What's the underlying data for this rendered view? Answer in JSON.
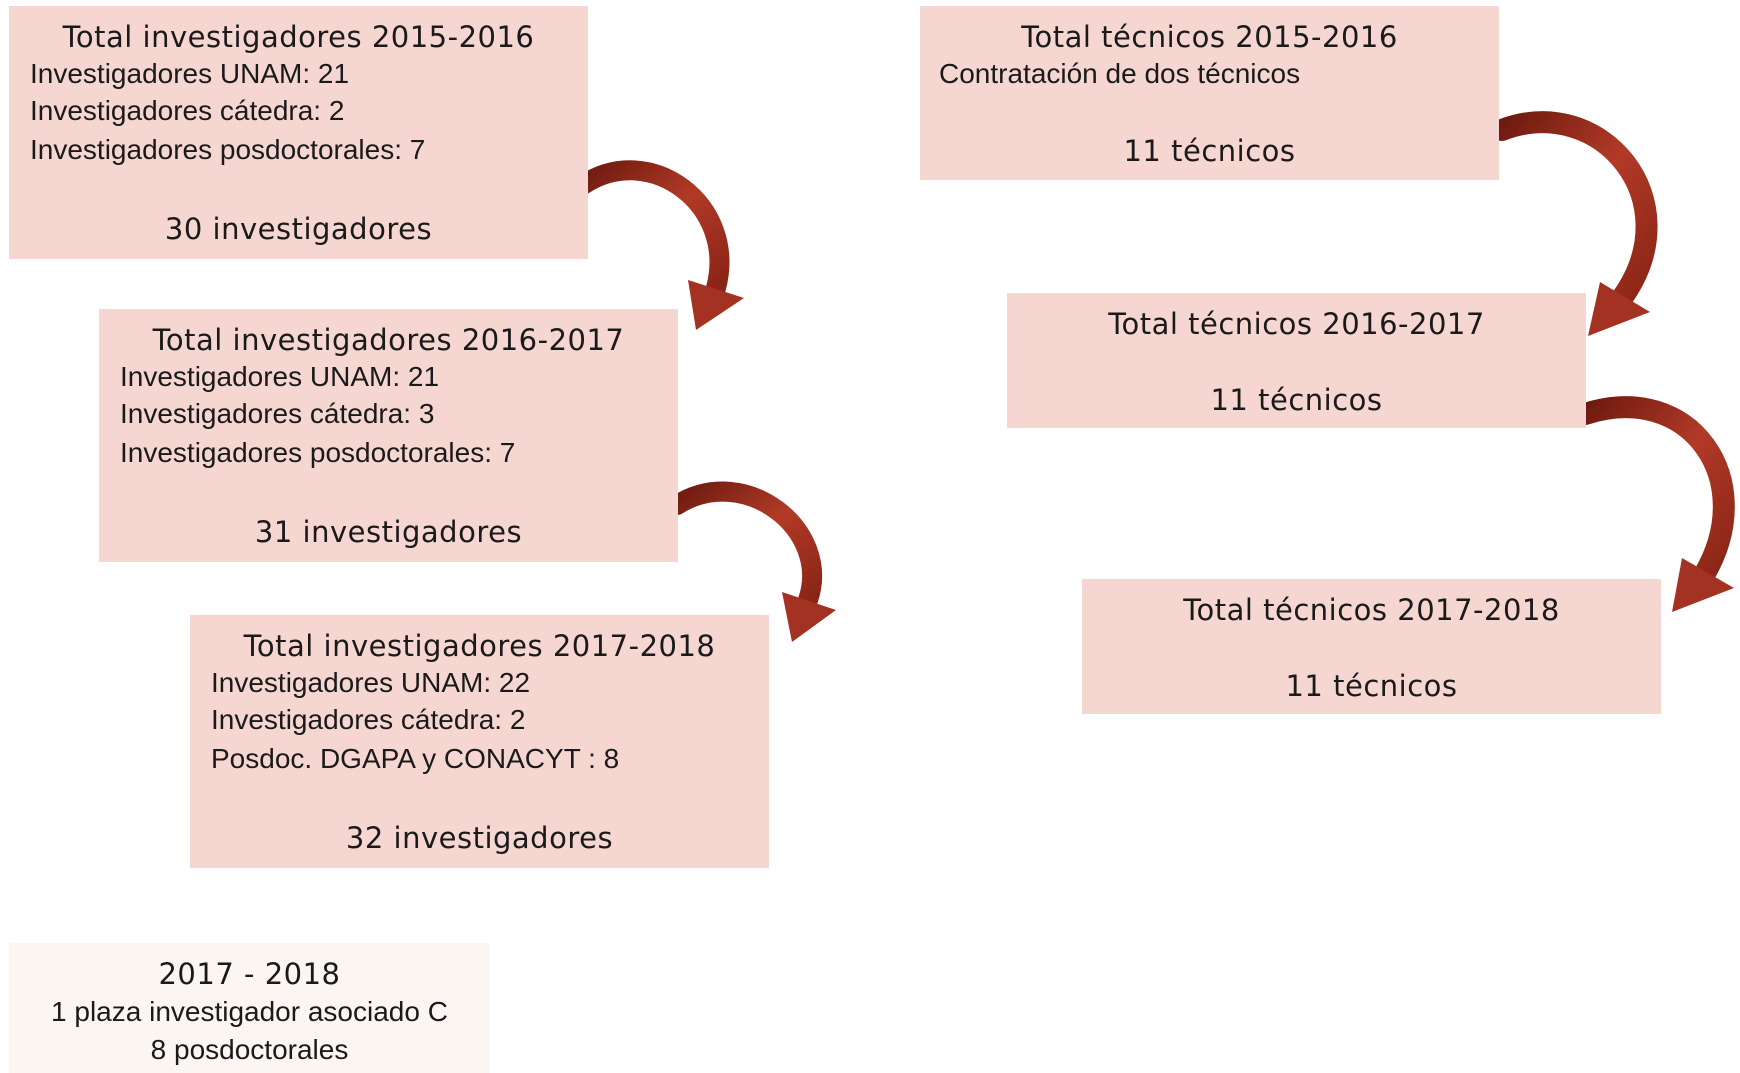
{
  "researchers": [
    {
      "title": "Total investigadores 2015-2016",
      "lines": [
        "Investigadores UNAM: 21",
        "Investigadores cátedra: 2",
        "Investigadores posdoctorales: 7"
      ],
      "total": "30 investigadores"
    },
    {
      "title": "Total investigadores 2016-2017",
      "lines": [
        "Investigadores UNAM: 21",
        "Investigadores cátedra: 3",
        "Investigadores posdoctorales: 7"
      ],
      "total": "31 investigadores"
    },
    {
      "title": "Total investigadores 2017-2018",
      "lines": [
        "Investigadores UNAM: 22",
        "Investigadores cátedra: 2",
        "Posdoc. DGAPA y CONACYT : 8"
      ],
      "total": "32 investigadores"
    }
  ],
  "technicians": [
    {
      "title": "Total técnicos 2015-2016",
      "lines": [
        "Contratación de dos técnicos"
      ],
      "total": "11 técnicos"
    },
    {
      "title": "Total técnicos 2016-2017",
      "total": "11 técnicos"
    },
    {
      "title": "Total técnicos 2017-2018",
      "total": "11 técnicos"
    }
  ],
  "note": {
    "title": "2017 - 2018",
    "lines": [
      "1 plaza investigador asociado C",
      "8 posdoctorales"
    ]
  }
}
